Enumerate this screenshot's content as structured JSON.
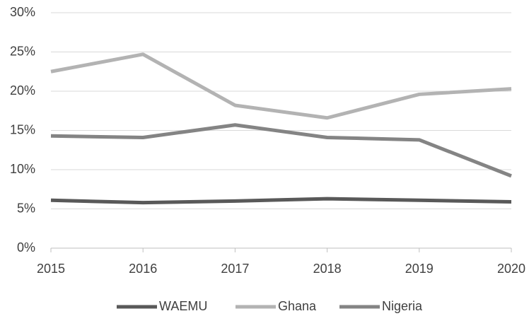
{
  "chart_data": {
    "type": "line",
    "categories": [
      "2015",
      "2016",
      "2017",
      "2018",
      "2019",
      "2020"
    ],
    "series": [
      {
        "name": "WAEMU",
        "color": "#595959",
        "values": [
          6.1,
          5.8,
          6.0,
          6.3,
          6.1,
          5.9
        ]
      },
      {
        "name": "Ghana",
        "color": "#b3b3b3",
        "values": [
          22.5,
          24.7,
          18.2,
          16.6,
          19.6,
          20.3
        ]
      },
      {
        "name": "Nigeria",
        "color": "#848484",
        "values": [
          14.3,
          14.1,
          15.7,
          14.1,
          13.8,
          9.2
        ]
      }
    ],
    "ylim": [
      0,
      30
    ],
    "yticks": [
      {
        "value": 0,
        "label": "0%"
      },
      {
        "value": 5,
        "label": "5%"
      },
      {
        "value": 10,
        "label": "10%"
      },
      {
        "value": 15,
        "label": "15%"
      },
      {
        "value": 20,
        "label": "20%"
      },
      {
        "value": 25,
        "label": "25%"
      },
      {
        "value": 30,
        "label": "30%"
      }
    ],
    "grid": true,
    "legend": "bottom"
  }
}
